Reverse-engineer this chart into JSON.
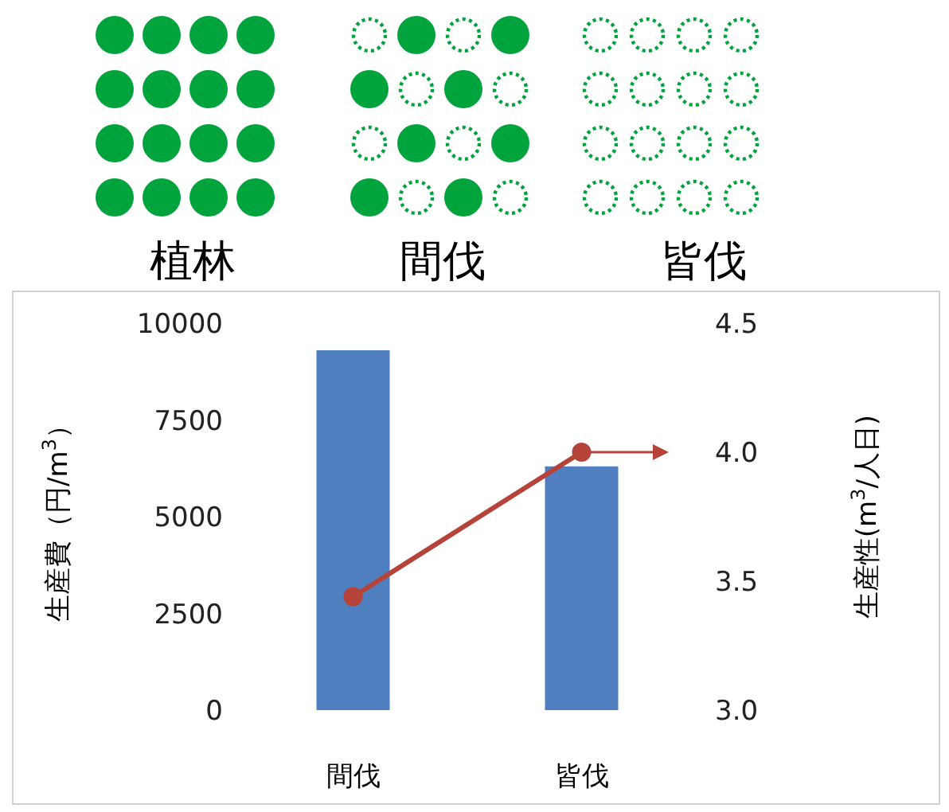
{
  "chart_data": {
    "type": "bar",
    "categories": [
      "間伐",
      "皆伐"
    ],
    "ylabel": "生産費（円/m$^{3}$）",
    "y2label": "生産性(m$^{3}$/人日)",
    "ylim": [
      0,
      10000
    ],
    "yticks": [
      0,
      2500,
      5000,
      7500,
      10000
    ],
    "y2lim": [
      3,
      4.5
    ],
    "y2ticks": [
      {
        "value": 3,
        "label": "3.0"
      },
      {
        "value": 3.5,
        "label": "3.5"
      },
      {
        "value": 4,
        "label": "4.0"
      },
      {
        "value": 4.5,
        "label": "4.5"
      }
    ],
    "series": [
      {
        "color": "#4f7fbf",
        "values": [
          9300,
          6300
        ]
      },
      {
        "type": "line",
        "axis": "y2",
        "color": "#b5433a",
        "marker": "circle",
        "values": [
          3.44,
          4.0
        ]
      }
    ],
    "annotations": [
      "植林",
      "間伐",
      "皆伐"
    ]
  }
}
